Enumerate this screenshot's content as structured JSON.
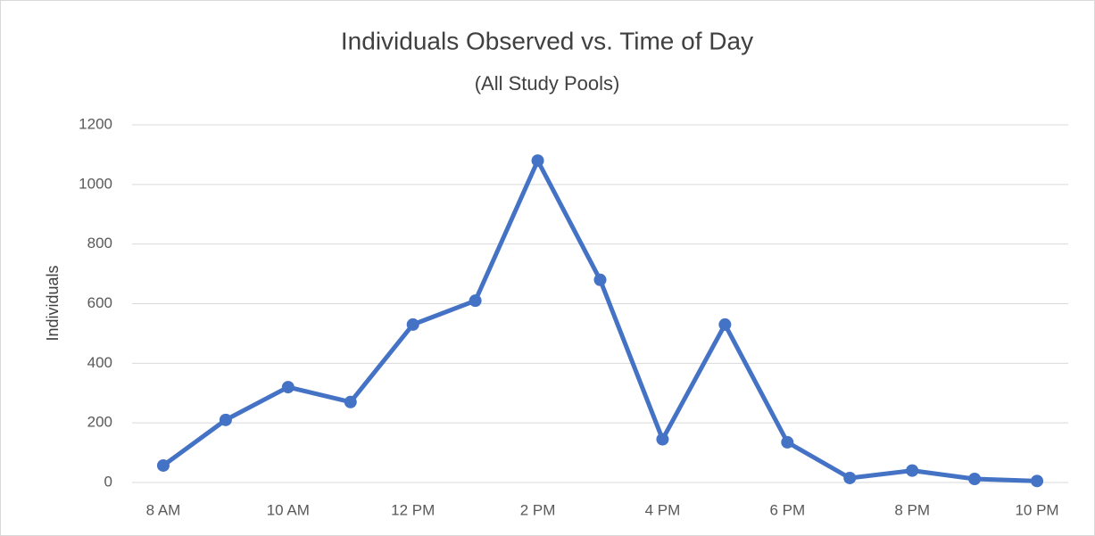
{
  "chart_data": {
    "type": "line",
    "title": "Individuals Observed vs. Time of Day",
    "subtitle": "(All Study Pools)",
    "y_label": "Individuals",
    "categories": [
      "8 AM",
      null,
      "10 AM",
      null,
      "12 PM",
      null,
      "2 PM",
      null,
      "4 PM",
      null,
      "6 PM",
      null,
      "8 PM",
      null,
      "10 PM"
    ],
    "values": [
      57,
      210,
      320,
      270,
      530,
      610,
      1080,
      680,
      145,
      530,
      135,
      15,
      40,
      12,
      5
    ],
    "color": "#4472c4",
    "ylim": [
      0,
      1200
    ],
    "yticks": [
      0,
      200,
      400,
      600,
      800,
      1000,
      1200
    ],
    "grid": true
  }
}
